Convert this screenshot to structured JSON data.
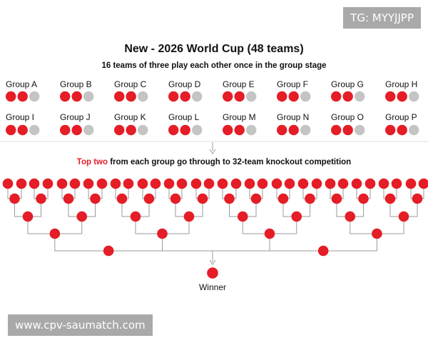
{
  "watermarks": {
    "top_right": "TG: MYYJJPP",
    "bottom_left": "www.cpv-saumatch.com"
  },
  "title": "New - 2026 World Cup (48 teams)",
  "subtitle": "16 teams of three play each other once in the group stage",
  "knockout_caption": {
    "highlight": "Top two",
    "rest": " from each group go through to 32-team knockout competition"
  },
  "groups": [
    {
      "label": "Group A",
      "advancing": 2,
      "eliminated": 1
    },
    {
      "label": "Group B",
      "advancing": 2,
      "eliminated": 1
    },
    {
      "label": "Group C",
      "advancing": 2,
      "eliminated": 1
    },
    {
      "label": "Group D",
      "advancing": 2,
      "eliminated": 1
    },
    {
      "label": "Group E",
      "advancing": 2,
      "eliminated": 1
    },
    {
      "label": "Group F",
      "advancing": 2,
      "eliminated": 1
    },
    {
      "label": "Group G",
      "advancing": 2,
      "eliminated": 1
    },
    {
      "label": "Group H",
      "advancing": 2,
      "eliminated": 1
    },
    {
      "label": "Group I",
      "advancing": 2,
      "eliminated": 1
    },
    {
      "label": "Group J",
      "advancing": 2,
      "eliminated": 1
    },
    {
      "label": "Group K",
      "advancing": 2,
      "eliminated": 1
    },
    {
      "label": "Group L",
      "advancing": 2,
      "eliminated": 1
    },
    {
      "label": "Group M",
      "advancing": 2,
      "eliminated": 1
    },
    {
      "label": "Group N",
      "advancing": 2,
      "eliminated": 1
    },
    {
      "label": "Group O",
      "advancing": 2,
      "eliminated": 1
    },
    {
      "label": "Group P",
      "advancing": 2,
      "eliminated": 1
    }
  ],
  "knockout_rounds": [
    32,
    16,
    8,
    4,
    2,
    1
  ],
  "winner_label": "Winner",
  "colors": {
    "advancing": "#e41d26",
    "eliminated": "#c4c4c4",
    "connector": "#9a9a9a",
    "text": "#111111"
  }
}
